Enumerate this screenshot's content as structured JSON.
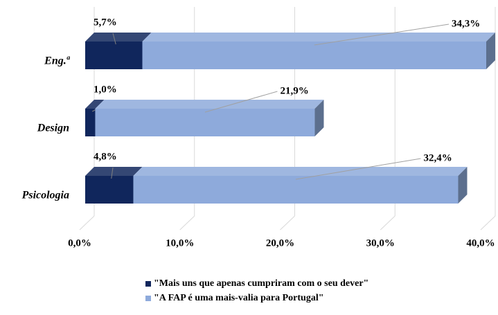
{
  "chart_data": {
    "type": "bar3d-stacked-horizontal",
    "categories": [
      "Eng.ª",
      "Design",
      "Psicologia"
    ],
    "series": [
      {
        "name": "\"Mais uns que apenas cumpriram com o seu dever\"",
        "color": "#10265c",
        "values": [
          5.7,
          1.0,
          4.8
        ],
        "value_labels": [
          "5,7%",
          "1,0%",
          "4,8%"
        ]
      },
      {
        "name": "\"A FAP é uma mais-valia para Portugal\"",
        "color": "#8eaadb",
        "values": [
          34.3,
          21.9,
          32.4
        ],
        "value_labels": [
          "34,3%",
          "21,9%",
          "32,4%"
        ]
      }
    ],
    "xlim": [
      0,
      40
    ],
    "xticks": [
      {
        "value": 0,
        "label": "0,0%"
      },
      {
        "value": 10,
        "label": "10,0%"
      },
      {
        "value": 20,
        "label": "20,0%"
      },
      {
        "value": 30,
        "label": "30,0%"
      },
      {
        "value": 40,
        "label": "40,0%"
      }
    ],
    "grid": true,
    "legend": "bottom"
  }
}
